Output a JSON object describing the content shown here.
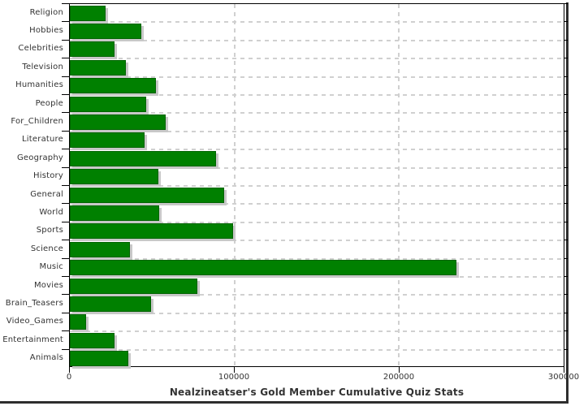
{
  "chart_data": {
    "type": "bar",
    "orientation": "horizontal",
    "title": "Nealzineatser's Gold Member Cumulative Quiz Stats",
    "categories": [
      "Religion",
      "Hobbies",
      "Celebrities",
      "Television",
      "Humanities",
      "People",
      "For_Children",
      "Literature",
      "Geography",
      "History",
      "General",
      "World",
      "Sports",
      "Science",
      "Music",
      "Movies",
      "Brain_Teasers",
      "Video_Games",
      "Entertainment",
      "Animals"
    ],
    "values": [
      21800,
      43300,
      27200,
      34200,
      52500,
      46300,
      58200,
      45400,
      88700,
      53800,
      93600,
      54300,
      99200,
      36300,
      234900,
      77300,
      49200,
      9900,
      26900,
      35300
    ],
    "xlim": [
      0,
      300000
    ],
    "x_ticks": [
      0,
      100000,
      200000,
      300000
    ],
    "x_tick_labels": [
      "0",
      "100000",
      "200000",
      "300000"
    ],
    "grid": "dashed",
    "legend": "none",
    "bar_color": "#008000",
    "bar_border_color": "#006400",
    "bar_shadow_color": "#c8c8c8",
    "grid_color": "#d0d0d0",
    "axis_color": "#000000",
    "text_color": "#333333",
    "background_color": "#ffffff"
  }
}
